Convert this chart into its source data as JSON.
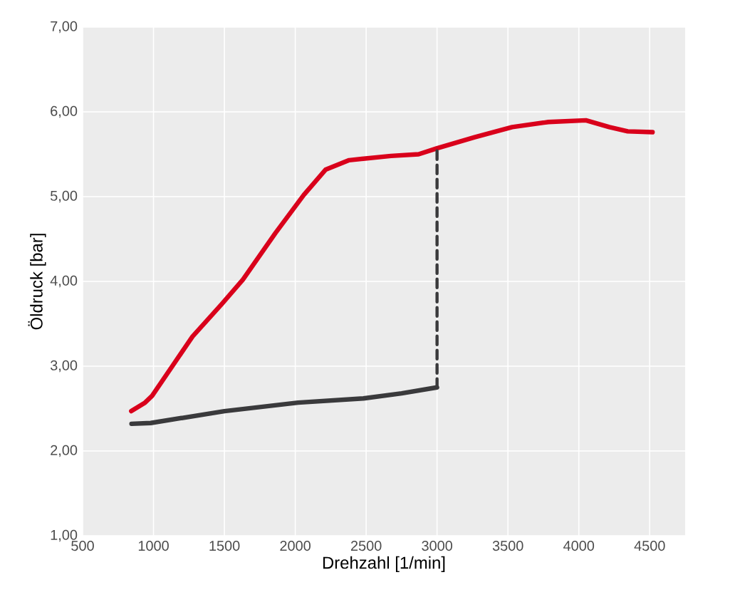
{
  "chart_data": {
    "type": "line",
    "xlabel": "Drehzahl [1/min]",
    "ylabel": "Öldruck [bar]",
    "xlim": [
      500,
      4750
    ],
    "xticks": [
      500,
      1000,
      1500,
      2000,
      2500,
      3000,
      3500,
      4000,
      4500
    ],
    "ylim": [
      1,
      7
    ],
    "yticks": [
      {
        "value": 1,
        "label": "1,00"
      },
      {
        "value": 2,
        "label": "2,00"
      },
      {
        "value": 3,
        "label": "3,00"
      },
      {
        "value": 4,
        "label": "4,00"
      },
      {
        "value": 5,
        "label": "5,00"
      },
      {
        "value": 6,
        "label": "6,00"
      },
      {
        "value": 7,
        "label": "7,00"
      }
    ],
    "grid": true,
    "line_style": "solid",
    "series": [
      {
        "color": "#d9001b",
        "x": [
          843,
          940,
          990,
          1275,
          1480,
          1630,
          1860,
          2060,
          2215,
          2380,
          2675,
          2870,
          3000,
          3265,
          3530,
          3785,
          4050,
          4215,
          4345,
          4520
        ],
        "values": [
          2.47,
          2.57,
          2.65,
          3.35,
          3.73,
          4.02,
          4.57,
          5.02,
          5.32,
          5.43,
          5.48,
          5.5,
          5.57,
          5.7,
          5.82,
          5.88,
          5.9,
          5.82,
          5.77,
          5.76
        ]
      },
      {
        "color": "#3a3a3c",
        "x": [
          845,
          980,
          1500,
          2020,
          2480,
          2750,
          3000
        ],
        "values": [
          2.32,
          2.33,
          2.47,
          2.57,
          2.62,
          2.68,
          2.75
        ]
      },
      {
        "color": "#3a3a3c",
        "line_style": "dashed",
        "x": [
          3000,
          3000
        ],
        "values": [
          2.75,
          5.57
        ]
      }
    ]
  }
}
